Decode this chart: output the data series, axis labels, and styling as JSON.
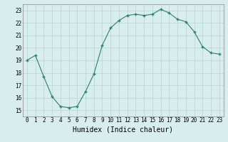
{
  "x": [
    0,
    1,
    2,
    3,
    4,
    5,
    6,
    7,
    8,
    9,
    10,
    11,
    12,
    13,
    14,
    15,
    16,
    17,
    18,
    19,
    20,
    21,
    22,
    23
  ],
  "y": [
    19.0,
    19.4,
    17.7,
    16.1,
    15.3,
    15.2,
    15.3,
    16.5,
    17.9,
    20.2,
    21.6,
    22.2,
    22.6,
    22.7,
    22.6,
    22.7,
    23.1,
    22.8,
    22.3,
    22.1,
    21.3,
    20.1,
    19.6,
    19.5
  ],
  "line_color": "#2e7d6e",
  "marker": "+",
  "marker_size": 3,
  "marker_linewidth": 1.0,
  "line_width": 0.8,
  "background_color": "#d8eeee",
  "grid_color": "#b8d4d4",
  "xlabel": "Humidex (Indice chaleur)",
  "ylim": [
    14.5,
    23.5
  ],
  "xlim": [
    -0.5,
    23.5
  ],
  "yticks": [
    15,
    16,
    17,
    18,
    19,
    20,
    21,
    22,
    23
  ],
  "xticks": [
    0,
    1,
    2,
    3,
    4,
    5,
    6,
    7,
    8,
    9,
    10,
    11,
    12,
    13,
    14,
    15,
    16,
    17,
    18,
    19,
    20,
    21,
    22,
    23
  ],
  "tick_fontsize": 5.5,
  "xlabel_fontsize": 7.0
}
